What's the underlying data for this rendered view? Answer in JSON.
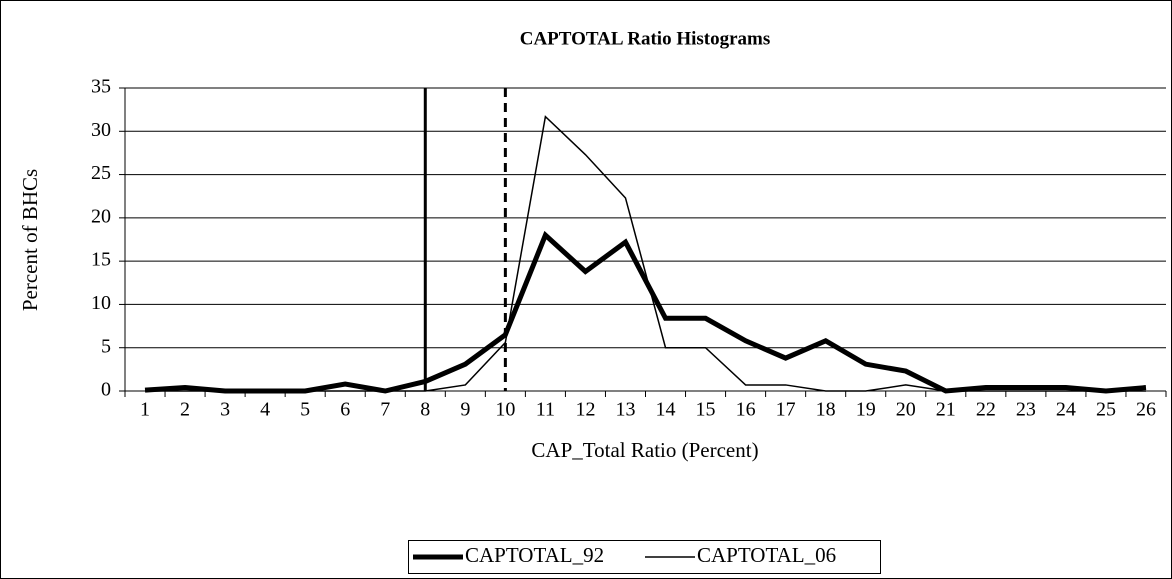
{
  "chart_data": {
    "type": "line",
    "title": "CAPTOTAL Ratio Histograms",
    "x_label": "CAP_Total Ratio (Percent)",
    "y_label": "Percent of BHCs",
    "categories": [
      1,
      2,
      3,
      4,
      5,
      6,
      7,
      8,
      9,
      10,
      11,
      12,
      13,
      14,
      15,
      16,
      17,
      18,
      19,
      20,
      21,
      22,
      23,
      24,
      25,
      26
    ],
    "series": [
      {
        "name": "CAPTOTAL_92",
        "color": "#000000",
        "width": 5,
        "values": [
          0.1,
          0.4,
          0,
          0,
          0,
          0.8,
          0,
          1.1,
          3.1,
          6.5,
          18,
          13.8,
          17.2,
          8.4,
          8.4,
          5.8,
          3.8,
          5.8,
          3.1,
          2.3,
          0,
          0.4,
          0.4,
          0.4,
          0,
          0.4
        ]
      },
      {
        "name": "CAPTOTAL_06",
        "color": "#000000",
        "width": 1.5,
        "values": [
          0,
          0,
          0,
          0,
          0,
          0,
          0,
          0,
          0.7,
          5.6,
          31.7,
          27.3,
          22.3,
          5,
          5,
          0.7,
          0.7,
          0,
          0,
          0.7,
          0,
          0,
          0,
          0,
          0,
          0
        ]
      }
    ],
    "reference_lines": [
      {
        "x": 8,
        "dashed": false
      },
      {
        "x": 10,
        "dashed": true
      }
    ],
    "ylim": [
      0,
      35
    ],
    "yticks": [
      0,
      5,
      10,
      15,
      20,
      25,
      30,
      35
    ],
    "grid": true,
    "legend": "bottom"
  }
}
